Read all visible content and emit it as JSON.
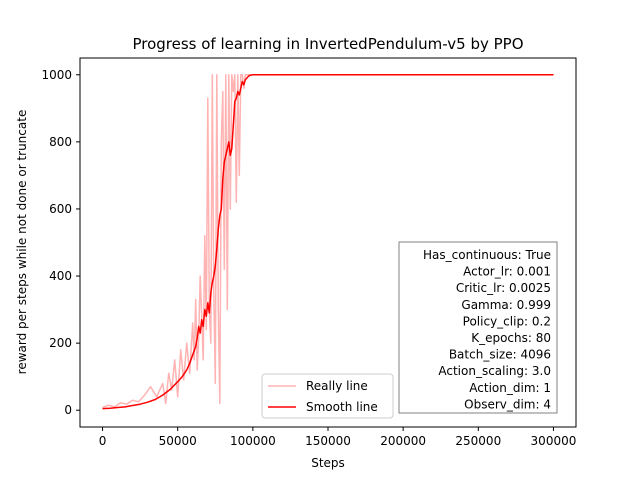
{
  "chart_data": {
    "type": "line",
    "title": "Progress of learning in InvertedPendulum-v5 by PPO",
    "xlabel": "Steps",
    "ylabel": "reward per steps while not done or truncate",
    "xlim": [
      -15000,
      315000
    ],
    "ylim": [
      -50,
      1050
    ],
    "xticks": [
      0,
      50000,
      100000,
      150000,
      200000,
      250000,
      300000
    ],
    "yticks": [
      0,
      200,
      400,
      600,
      800,
      1000
    ],
    "legend_position": "lower-center",
    "series": [
      {
        "name": "Really line",
        "color": "#ffb3b3",
        "x": [
          0,
          4000,
          8000,
          12000,
          16000,
          20000,
          24000,
          28000,
          32000,
          36000,
          40000,
          42000,
          44000,
          46000,
          48000,
          50000,
          52000,
          54000,
          56000,
          58000,
          60000,
          61000,
          62000,
          63000,
          64000,
          65000,
          66000,
          67000,
          68000,
          69000,
          70000,
          71000,
          72000,
          73000,
          74000,
          75000,
          76000,
          77000,
          78000,
          79000,
          80000,
          81000,
          82000,
          83000,
          84000,
          85000,
          86000,
          87000,
          88000,
          89000,
          90000,
          91000,
          92000,
          93000,
          94000,
          95000,
          96000,
          98000,
          100000,
          103000,
          106000
        ],
        "y": [
          8,
          15,
          10,
          22,
          18,
          30,
          25,
          45,
          70,
          40,
          80,
          20,
          110,
          60,
          150,
          40,
          180,
          90,
          200,
          110,
          260,
          150,
          330,
          120,
          220,
          400,
          280,
          150,
          520,
          240,
          930,
          300,
          200,
          1000,
          350,
          80,
          1000,
          300,
          20,
          800,
          950,
          420,
          1000,
          300,
          1000,
          600,
          1000,
          950,
          1000,
          620,
          1000,
          700,
          1000,
          1000,
          960,
          1000,
          1000,
          1000,
          1000,
          1000,
          1000
        ]
      },
      {
        "name": "Smooth line",
        "color": "#ff0000",
        "x": [
          0,
          5000,
          10000,
          15000,
          20000,
          25000,
          30000,
          35000,
          40000,
          45000,
          50000,
          53000,
          56000,
          58000,
          60000,
          62000,
          63000,
          64000,
          65000,
          66000,
          67000,
          68000,
          69000,
          70000,
          71000,
          72000,
          73000,
          74000,
          75000,
          76000,
          77000,
          78000,
          79000,
          80000,
          81000,
          82000,
          83000,
          84000,
          85000,
          86000,
          87000,
          88000,
          89000,
          90000,
          91000,
          92000,
          93000,
          94000,
          95000,
          96000,
          97000,
          98000,
          100000,
          102000,
          104000,
          106000,
          108000,
          120000,
          150000,
          200000,
          250000,
          300000
        ],
        "y": [
          5,
          6,
          8,
          10,
          14,
          18,
          24,
          32,
          45,
          62,
          85,
          100,
          120,
          140,
          165,
          190,
          215,
          250,
          230,
          270,
          250,
          300,
          280,
          320,
          290,
          350,
          380,
          400,
          430,
          480,
          540,
          580,
          600,
          690,
          740,
          760,
          780,
          800,
          760,
          780,
          850,
          920,
          930,
          950,
          940,
          960,
          980,
          970,
          985,
          990,
          995,
          998,
          1000,
          1000,
          1000,
          1000,
          1000,
          1000,
          1000,
          1000,
          1000,
          1000
        ]
      }
    ],
    "info_box": [
      "Has_continuous: True",
      "Actor_lr: 0.001",
      "Critic_lr: 0.0025",
      "Gamma: 0.999",
      "Policy_clip: 0.2",
      "K_epochs: 80",
      "Batch_size: 4096",
      "Action_scaling: 3.0",
      "Action_dim: 1",
      "Observ_dim: 4"
    ]
  }
}
